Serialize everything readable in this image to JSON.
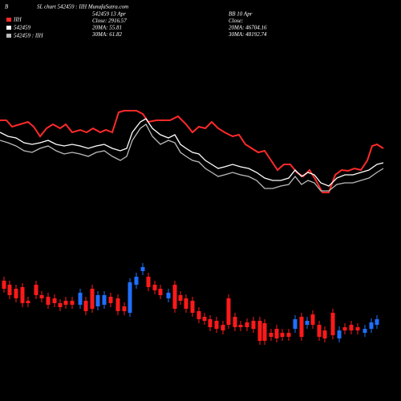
{
  "chart_data": {
    "type": "candlestick",
    "corner_label": "B",
    "title": "SL chart 542459 : IIH MunafaSutra.com",
    "info": [
      [
        "542459 13 Apr",
        "Close: 2916.57",
        "20MA: 55.81",
        "30MA: 61.82"
      ],
      [
        "BB 10 Apr",
        "Close:",
        "20MA: 46704.16",
        "30MA: 48192.74"
      ]
    ],
    "up_color": "#1f6fff",
    "down_color": "#ff1a1a",
    "series": [
      {
        "name": "IIH",
        "color": "#ff2a2a",
        "x": [
          0,
          8,
          15,
          25,
          35,
          42,
          50,
          58,
          66,
          75,
          82,
          90,
          100,
          108,
          116,
          125,
          132,
          140,
          148,
          155,
          170,
          178,
          185,
          195,
          212,
          222,
          232,
          240,
          248,
          256,
          264,
          272,
          280,
          290,
          298,
          306,
          314,
          322,
          330,
          338,
          346,
          354,
          362,
          370,
          378,
          386,
          394,
          402,
          410,
          418,
          426,
          434,
          442,
          450,
          458,
          464,
          470,
          478
        ],
        "values": [
          350,
          350,
          342,
          345,
          348,
          342,
          330,
          340,
          345,
          340,
          345,
          335,
          338,
          335,
          340,
          335,
          338,
          335,
          360,
          362,
          362,
          358,
          348,
          350,
          350,
          355,
          345,
          335,
          342,
          340,
          348,
          340,
          335,
          330,
          332,
          320,
          315,
          310,
          312,
          300,
          288,
          295,
          295,
          285,
          280,
          288,
          275,
          260,
          260,
          282,
          288,
          287,
          290,
          288,
          300,
          318,
          320,
          315
        ]
      },
      {
        "name": "542459",
        "color": "#ffffff",
        "x": [
          0,
          10,
          20,
          30,
          40,
          50,
          60,
          70,
          80,
          90,
          100,
          110,
          120,
          130,
          140,
          150,
          158,
          165,
          175,
          182,
          190,
          200,
          210,
          218,
          225,
          232,
          240,
          248,
          256,
          264,
          272,
          280,
          290,
          300,
          310,
          320,
          330,
          340,
          350,
          360,
          368,
          376,
          384,
          392,
          400,
          410,
          420,
          430,
          440,
          450,
          460,
          470,
          478
        ],
        "values": [
          335,
          330,
          328,
          322,
          320,
          322,
          325,
          320,
          318,
          320,
          318,
          315,
          318,
          320,
          315,
          312,
          315,
          335,
          348,
          352,
          340,
          332,
          328,
          332,
          320,
          315,
          310,
          308,
          300,
          295,
          290,
          292,
          295,
          292,
          290,
          285,
          278,
          275,
          275,
          278,
          288,
          280,
          285,
          282,
          272,
          268,
          278,
          282,
          282,
          285,
          288,
          295,
          297
        ]
      },
      {
        "name": "542459 : IIH",
        "color": "#bbbbbb",
        "x": [
          0,
          10,
          20,
          30,
          40,
          50,
          60,
          70,
          80,
          90,
          100,
          110,
          120,
          130,
          140,
          150,
          158,
          165,
          175,
          182,
          190,
          200,
          210,
          218,
          225,
          232,
          240,
          248,
          256,
          264,
          272,
          280,
          290,
          300,
          310,
          320,
          330,
          340,
          350,
          360,
          368,
          376,
          384,
          392,
          400,
          410,
          420,
          430,
          440,
          450,
          460,
          470,
          478
        ],
        "values": [
          325,
          322,
          318,
          312,
          310,
          315,
          318,
          312,
          308,
          310,
          308,
          305,
          310,
          312,
          305,
          300,
          305,
          325,
          340,
          345,
          330,
          320,
          325,
          322,
          310,
          305,
          300,
          298,
          290,
          285,
          280,
          282,
          285,
          282,
          280,
          275,
          265,
          265,
          268,
          270,
          280,
          270,
          275,
          272,
          262,
          262,
          270,
          272,
          272,
          275,
          278,
          285,
          290
        ]
      }
    ],
    "candles": {
      "x": [
        5,
        12,
        20,
        28,
        35,
        45,
        52,
        60,
        68,
        75,
        82,
        90,
        100,
        107,
        115,
        122,
        130,
        138,
        147,
        155,
        162,
        170,
        178,
        185,
        193,
        200,
        210,
        218,
        225,
        232,
        240,
        248,
        255,
        262,
        270,
        278,
        285,
        293,
        300,
        308,
        316,
        324,
        330,
        338,
        345,
        352,
        360,
        368,
        376,
        383,
        390,
        398,
        405,
        415,
        423,
        430,
        438,
        446,
        455,
        463,
        470
      ],
      "open": [
        150,
        145,
        140,
        142,
        125,
        145,
        132,
        130,
        128,
        122,
        125,
        125,
        120,
        125,
        140,
        118,
        120,
        130,
        128,
        118,
        110,
        145,
        162,
        155,
        145,
        140,
        128,
        145,
        132,
        128,
        125,
        112,
        105,
        102,
        100,
        95,
        128,
        105,
        95,
        98,
        100,
        100,
        97,
        85,
        90,
        85,
        85,
        90,
        105,
        95,
        108,
        95,
        88,
        110,
        78,
        92,
        95,
        92,
        85,
        90,
        95
      ],
      "close": [
        140,
        132,
        128,
        122,
        122,
        132,
        128,
        120,
        122,
        117,
        120,
        120,
        135,
        112,
        115,
        132,
        132,
        122,
        112,
        112,
        148,
        155,
        167,
        142,
        138,
        132,
        135,
        115,
        125,
        115,
        110,
        102,
        100,
        92,
        90,
        88,
        95,
        92,
        92,
        92,
        90,
        75,
        75,
        80,
        78,
        80,
        80,
        102,
        80,
        100,
        95,
        80,
        78,
        82,
        88,
        88,
        88,
        88,
        90,
        98,
        102
      ],
      "high": [
        155,
        150,
        145,
        147,
        130,
        150,
        137,
        135,
        133,
        127,
        130,
        130,
        140,
        130,
        145,
        137,
        137,
        135,
        133,
        123,
        153,
        160,
        172,
        160,
        150,
        145,
        140,
        150,
        137,
        133,
        130,
        117,
        110,
        107,
        105,
        100,
        133,
        110,
        100,
        103,
        105,
        105,
        102,
        90,
        95,
        90,
        90,
        107,
        110,
        105,
        113,
        100,
        93,
        115,
        93,
        97,
        100,
        97,
        95,
        103,
        107
      ],
      "low": [
        135,
        127,
        123,
        117,
        117,
        127,
        123,
        115,
        117,
        112,
        115,
        115,
        115,
        107,
        110,
        113,
        115,
        117,
        107,
        107,
        105,
        140,
        157,
        137,
        133,
        127,
        123,
        110,
        120,
        110,
        105,
        97,
        95,
        87,
        85,
        83,
        90,
        87,
        87,
        87,
        85,
        70,
        70,
        75,
        73,
        75,
        75,
        85,
        75,
        90,
        90,
        75,
        73,
        77,
        73,
        83,
        83,
        83,
        80,
        85,
        90
      ]
    }
  }
}
